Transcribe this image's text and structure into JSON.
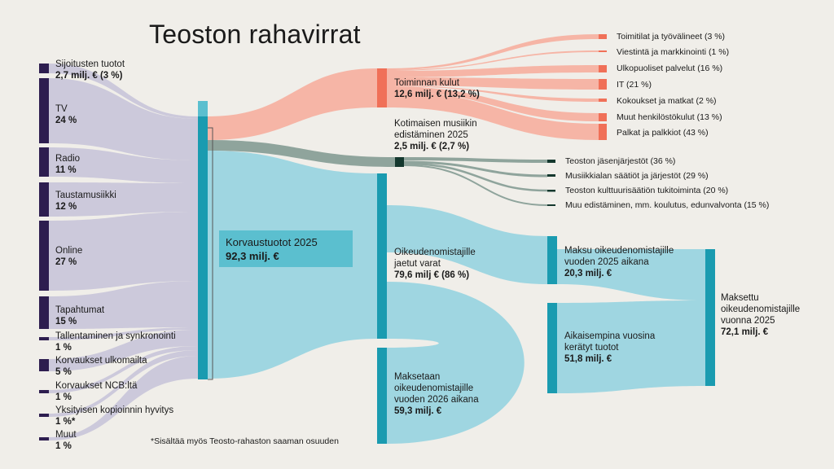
{
  "title": "Teoston rahavirrat",
  "footnote": "*Sisältää myös Teosto-rahaston saaman osuuden",
  "colors": {
    "background": "#f0eee9",
    "source_node": "#2d1d4f",
    "source_flow": "#c9c6da",
    "revenue_node": "#1a9bb0",
    "revenue_flow": "#9fd6e1",
    "cost_node": "#f07058",
    "cost_flow": "#f6b5a6",
    "promo_node": "#14382e",
    "promo_flow": "#8fa49c",
    "revenue_box": "#5bbfcf"
  },
  "revenue": {
    "name": "Korvaustuotot 2025",
    "value": "92,3 milj. €"
  },
  "sources": [
    {
      "name": "Sijoitusten tuotot",
      "value": "2,7 milj. € (3 %)"
    },
    {
      "name": "TV",
      "value": "24 %"
    },
    {
      "name": "Radio",
      "value": "11 %"
    },
    {
      "name": "Taustamusiikki",
      "value": "12 %"
    },
    {
      "name": "Online",
      "value": "27 %"
    },
    {
      "name": "Tapahtumat",
      "value": "15 %"
    },
    {
      "name": "Tallentaminen ja synkronointi",
      "value": "1 %"
    },
    {
      "name": "Korvaukset ulkomailta",
      "value": "5 %"
    },
    {
      "name": "Korvaukset NCB:ltä",
      "value": "1 %"
    },
    {
      "name": "Yksityisen kopioinnin hyvitys",
      "value": "1 %*"
    },
    {
      "name": "Muut",
      "value": "1 %"
    }
  ],
  "operating_costs": {
    "name": "Toiminnan kulut",
    "value": "12,6 milj. € (13,2 %)"
  },
  "cost_items": [
    "Toimitilat ja työvälineet (3 %)",
    "Viestintä ja markkinointi (1 %)",
    "Ulkopuoliset palvelut (16 %)",
    "IT (21 %)",
    "Kokoukset ja matkat (2 %)",
    "Muut henkilöstökulut (13 %)",
    "Palkat ja palkkiot (43 %)"
  ],
  "promotion": {
    "name_line1": "Kotimaisen musiikin",
    "name_line2": "edistäminen 2025",
    "value": "2,5 milj. € (2,7 %)"
  },
  "promotion_items": [
    "Teoston jäsenjärjestöt (36 %)",
    "Musiikkialan säätiöt ja järjestöt (29 %)",
    "Teoston kulttuurisäätiön tukitoiminta (20 %)",
    "Muu edistäminen, mm. koulutus, edunvalvonta (15 %)"
  ],
  "distributed": {
    "line1": "Oikeudenomistajille",
    "line2": "jaetut varat",
    "value": "79,6 milj € (86 %)"
  },
  "paid_2026": {
    "line1": "Maksetaan",
    "line2": "oikeudenomistajille",
    "line3": "vuoden 2026 aikana",
    "value": "59,3 milj. €"
  },
  "paid_during_2025": {
    "line1": "Maksu oikeudenomistajille",
    "line2": "vuoden 2025 aikana",
    "value": "20,3 milj. €"
  },
  "earlier_collected": {
    "line1": "Aikaisempina vuosina",
    "line2": "kerätyt tuotot",
    "value": "51,8 milj. €"
  },
  "paid_total_2025": {
    "line1": "Maksettu",
    "line2": "oikeudenomistajille",
    "line3": "vuonna 2025",
    "value": "72,1 milj. €"
  }
}
